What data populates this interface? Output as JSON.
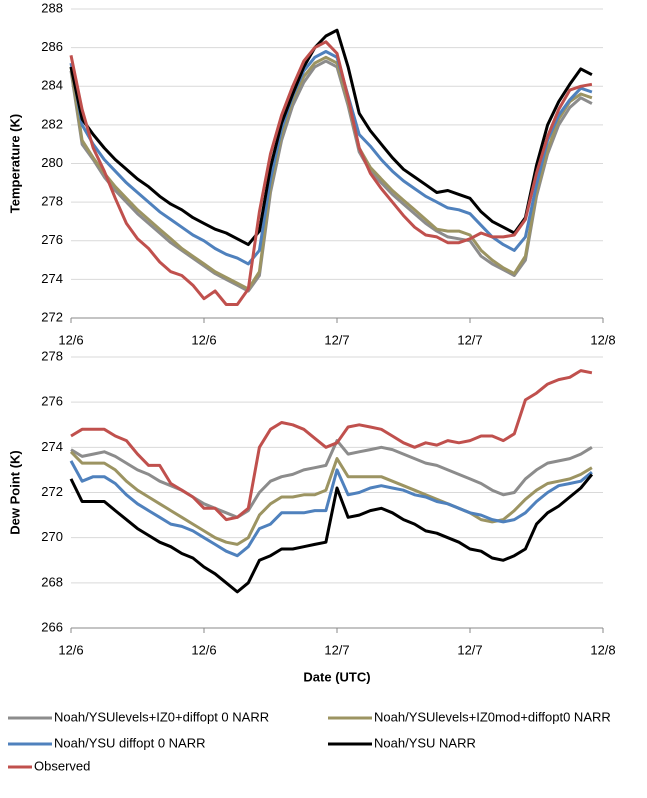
{
  "chart_data": [
    {
      "type": "line",
      "y_label": "Temperature (K)",
      "categories": [
        "12/6",
        null,
        null,
        null,
        null,
        null,
        null,
        null,
        null,
        null,
        null,
        null,
        "12/6",
        null,
        null,
        null,
        null,
        null,
        null,
        null,
        null,
        null,
        null,
        null,
        "12/7",
        null,
        null,
        null,
        null,
        null,
        null,
        null,
        null,
        null,
        null,
        null,
        "12/7",
        null,
        null,
        null,
        null,
        null,
        null,
        null,
        null,
        null,
        null,
        null,
        "12/8"
      ],
      "ylim": [
        272,
        288
      ],
      "yticks": [
        272,
        274,
        276,
        278,
        280,
        282,
        284,
        286,
        288
      ],
      "grid": true,
      "series": [
        {
          "name": "Noah/YSUlevels+IZ0+diffopt 0 NARR",
          "color": "#8c8c8c",
          "values": [
            284.8,
            281,
            280.2,
            279.3,
            278.6,
            278,
            277.4,
            276.9,
            276.4,
            275.9,
            275.5,
            275.1,
            274.7,
            274.3,
            274,
            273.7,
            273.4,
            274.2,
            278.5,
            281.2,
            283,
            284.2,
            285,
            285.3,
            285,
            283,
            280.6,
            279.6,
            279,
            278.4,
            277.9,
            277.4,
            276.9,
            276.5,
            276.2,
            276.1,
            276,
            275.2,
            274.8,
            274.5,
            274.2,
            275,
            278.3,
            280.5,
            282,
            282.9,
            283.4,
            283.1,
            null
          ]
        },
        {
          "name": "Noah/YSUlevels+IZ0mod+diffopt0 NARR",
          "color": "#9c9462",
          "values": [
            285,
            281.2,
            280.3,
            279.5,
            278.8,
            278.2,
            277.6,
            277.1,
            276.6,
            276.1,
            275.6,
            275.2,
            274.8,
            274.4,
            274.1,
            273.8,
            273.5,
            274.4,
            278.8,
            281.5,
            283.3,
            284.5,
            285.2,
            285.5,
            285.2,
            283.2,
            280.8,
            279.8,
            279.2,
            278.6,
            278.1,
            277.6,
            277.1,
            276.6,
            276.5,
            276.5,
            276.3,
            275.5,
            275,
            274.6,
            274.3,
            275.2,
            278.5,
            280.7,
            282.3,
            283.2,
            283.6,
            283.4,
            null
          ]
        },
        {
          "name": "Noah/YSU diffopt 0 NARR",
          "color": "#4f81bd",
          "values": [
            285.2,
            282,
            281,
            280.2,
            279.6,
            279,
            278.5,
            278,
            277.5,
            277.1,
            276.7,
            276.3,
            276,
            275.6,
            275.3,
            275.1,
            274.8,
            275.5,
            279.2,
            281.8,
            283.5,
            284.8,
            285.5,
            285.8,
            285.5,
            283.5,
            281.5,
            280.9,
            280.2,
            279.6,
            279.1,
            278.7,
            278.3,
            278,
            277.7,
            277.6,
            277.4,
            276.8,
            276.2,
            275.8,
            275.5,
            276.2,
            278.9,
            281.2,
            282.5,
            283.3,
            283.9,
            283.7,
            null
          ]
        },
        {
          "name": "Noah/YSU NARR",
          "color": "#000000",
          "values": [
            285,
            282.3,
            281.5,
            280.8,
            280.2,
            279.7,
            279.2,
            278.8,
            278.3,
            277.9,
            277.6,
            277.2,
            276.9,
            276.6,
            276.4,
            276.1,
            275.8,
            276.5,
            279.8,
            282.1,
            283.6,
            285,
            286,
            286.6,
            286.9,
            285,
            282.6,
            281.7,
            281,
            280.3,
            279.7,
            279.3,
            278.9,
            278.5,
            278.6,
            278.4,
            278.2,
            277.5,
            277,
            276.7,
            276.4,
            277.2,
            279.9,
            282,
            283.2,
            284.1,
            284.9,
            284.6,
            null
          ]
        },
        {
          "name": "Observed",
          "color": "#c0504d",
          "values": [
            285.6,
            282.8,
            280.8,
            279.6,
            278.2,
            276.9,
            276.1,
            275.6,
            274.9,
            274.4,
            274.2,
            273.7,
            273,
            273.4,
            272.7,
            272.7,
            273.5,
            277.5,
            280.5,
            282.5,
            284,
            285.3,
            286,
            286.3,
            285.7,
            283.4,
            280.8,
            279.5,
            278.7,
            278,
            277.3,
            276.7,
            276.3,
            276.2,
            275.9,
            275.9,
            276.1,
            276.4,
            276.2,
            276.2,
            276.3,
            277.1,
            279.5,
            281.4,
            282.8,
            283.8,
            284,
            284.1,
            null
          ]
        }
      ]
    },
    {
      "type": "line",
      "y_label": "Dew Point (K)",
      "x_label": "Date (UTC)",
      "categories": [
        "12/6",
        null,
        null,
        null,
        null,
        null,
        null,
        null,
        null,
        null,
        null,
        null,
        "12/6",
        null,
        null,
        null,
        null,
        null,
        null,
        null,
        null,
        null,
        null,
        null,
        "12/7",
        null,
        null,
        null,
        null,
        null,
        null,
        null,
        null,
        null,
        null,
        null,
        "12/7",
        null,
        null,
        null,
        null,
        null,
        null,
        null,
        null,
        null,
        null,
        null,
        "12/8"
      ],
      "ylim": [
        266,
        278
      ],
      "yticks": [
        266,
        268,
        270,
        272,
        274,
        276,
        278
      ],
      "grid": true,
      "series": [
        {
          "name": "Noah/YSUlevels+IZ0+diffopt 0 NARR",
          "color": "#8c8c8c",
          "values": [
            273.9,
            273.6,
            273.7,
            273.8,
            273.6,
            273.3,
            273,
            272.8,
            272.5,
            272.3,
            272.1,
            271.8,
            271.5,
            271.3,
            271.1,
            270.9,
            271.2,
            272,
            272.5,
            272.7,
            272.8,
            273,
            273.1,
            273.2,
            274.3,
            273.7,
            273.8,
            273.9,
            274,
            273.9,
            273.7,
            273.5,
            273.3,
            273.2,
            273,
            272.8,
            272.6,
            272.4,
            272.1,
            271.9,
            272,
            272.6,
            273,
            273.3,
            273.4,
            273.5,
            273.7,
            274,
            null
          ]
        },
        {
          "name": "Noah/YSUlevels+IZ0mod+diffopt0 NARR",
          "color": "#9c9462",
          "values": [
            273.8,
            273.3,
            273.3,
            273.3,
            273,
            272.5,
            272.1,
            271.8,
            271.5,
            271.2,
            270.9,
            270.6,
            270.3,
            270,
            269.8,
            269.7,
            270,
            271,
            271.5,
            271.8,
            271.8,
            271.9,
            271.9,
            272.1,
            273.5,
            272.7,
            272.7,
            272.7,
            272.7,
            272.5,
            272.3,
            272.1,
            271.9,
            271.7,
            271.5,
            271.3,
            271.1,
            270.8,
            270.7,
            270.8,
            271.2,
            271.7,
            272.1,
            272.4,
            272.5,
            272.6,
            272.8,
            273.1,
            null
          ]
        },
        {
          "name": "Noah/YSU diffopt 0 NARR",
          "color": "#4f81bd",
          "values": [
            273.4,
            272.5,
            272.7,
            272.7,
            272.4,
            271.9,
            271.5,
            271.2,
            270.9,
            270.6,
            270.5,
            270.3,
            270,
            269.7,
            269.4,
            269.2,
            269.6,
            270.4,
            270.6,
            271.1,
            271.1,
            271.1,
            271.2,
            271.2,
            273,
            271.9,
            272,
            272.2,
            272.3,
            272.2,
            272.1,
            271.9,
            271.8,
            271.6,
            271.5,
            271.3,
            271.1,
            271,
            270.8,
            270.7,
            270.8,
            271.1,
            271.6,
            272,
            272.3,
            272.4,
            272.5,
            272.9,
            null
          ]
        },
        {
          "name": "Noah/YSU NARR",
          "color": "#000000",
          "values": [
            272.6,
            271.6,
            271.6,
            271.6,
            271.2,
            270.8,
            270.4,
            270.1,
            269.8,
            269.6,
            269.3,
            269.1,
            268.7,
            268.4,
            268,
            267.6,
            268,
            269,
            269.2,
            269.5,
            269.5,
            269.6,
            269.7,
            269.8,
            272.2,
            270.9,
            271,
            271.2,
            271.3,
            271.1,
            270.8,
            270.6,
            270.3,
            270.2,
            270,
            269.8,
            269.5,
            269.4,
            269.1,
            269,
            269.2,
            269.5,
            270.6,
            271.1,
            271.4,
            271.8,
            272.2,
            272.8,
            null
          ]
        },
        {
          "name": "Observed",
          "color": "#c0504d",
          "values": [
            274.5,
            274.8,
            274.8,
            274.8,
            274.5,
            274.3,
            273.7,
            273.2,
            273.2,
            272.4,
            272.1,
            271.8,
            271.3,
            271.3,
            270.8,
            270.9,
            271.3,
            274,
            274.8,
            275.1,
            275,
            274.8,
            274.4,
            274,
            274.2,
            274.9,
            275,
            274.9,
            274.8,
            274.5,
            274.2,
            274,
            274.2,
            274.1,
            274.3,
            274.2,
            274.3,
            274.5,
            274.5,
            274.3,
            274.6,
            276.1,
            276.4,
            276.8,
            277,
            277.1,
            277.4,
            277.3,
            null
          ]
        }
      ]
    }
  ]
}
